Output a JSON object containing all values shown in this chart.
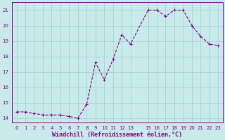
{
  "x": [
    0,
    1,
    2,
    3,
    4,
    5,
    6,
    7,
    8,
    9,
    10,
    11,
    12,
    13,
    15,
    16,
    17,
    18,
    19,
    20,
    21,
    22,
    23
  ],
  "y": [
    14.4,
    14.4,
    14.3,
    14.2,
    14.2,
    14.2,
    14.1,
    14.0,
    14.9,
    17.6,
    16.5,
    17.8,
    19.4,
    18.8,
    21.0,
    21.0,
    20.6,
    21.0,
    21.0,
    20.0,
    19.3,
    18.8,
    18.7
  ],
  "line_color": "#880088",
  "marker": "+",
  "marker_size": 3.5,
  "bg_color": "#c8eaea",
  "grid_color": "#a0cccc",
  "xlabel": "Windchill (Refroidissement éolien,°C)",
  "xlabel_color": "#880088",
  "ytick_vals": [
    14,
    15,
    16,
    17,
    18,
    19,
    20,
    21
  ],
  "xtick_positions": [
    0,
    1,
    2,
    3,
    4,
    5,
    6,
    7,
    8,
    9,
    10,
    11,
    12,
    13,
    15,
    16,
    17,
    18,
    19,
    20,
    21,
    22,
    23
  ],
  "xtick_labels": [
    "0",
    "1",
    "2",
    "3",
    "4",
    "5",
    "6",
    "7",
    "8",
    "9",
    "10",
    "11",
    "12",
    "13",
    "15",
    "16",
    "17",
    "18",
    "19",
    "20",
    "21",
    "22",
    "23"
  ],
  "xlim": [
    -0.5,
    23.5
  ],
  "ylim": [
    13.7,
    21.5
  ],
  "tick_color": "#880088",
  "tick_fontsize": 5,
  "xlabel_fontsize": 6,
  "linewidth": 0.8,
  "marker_linewidth": 0.8
}
